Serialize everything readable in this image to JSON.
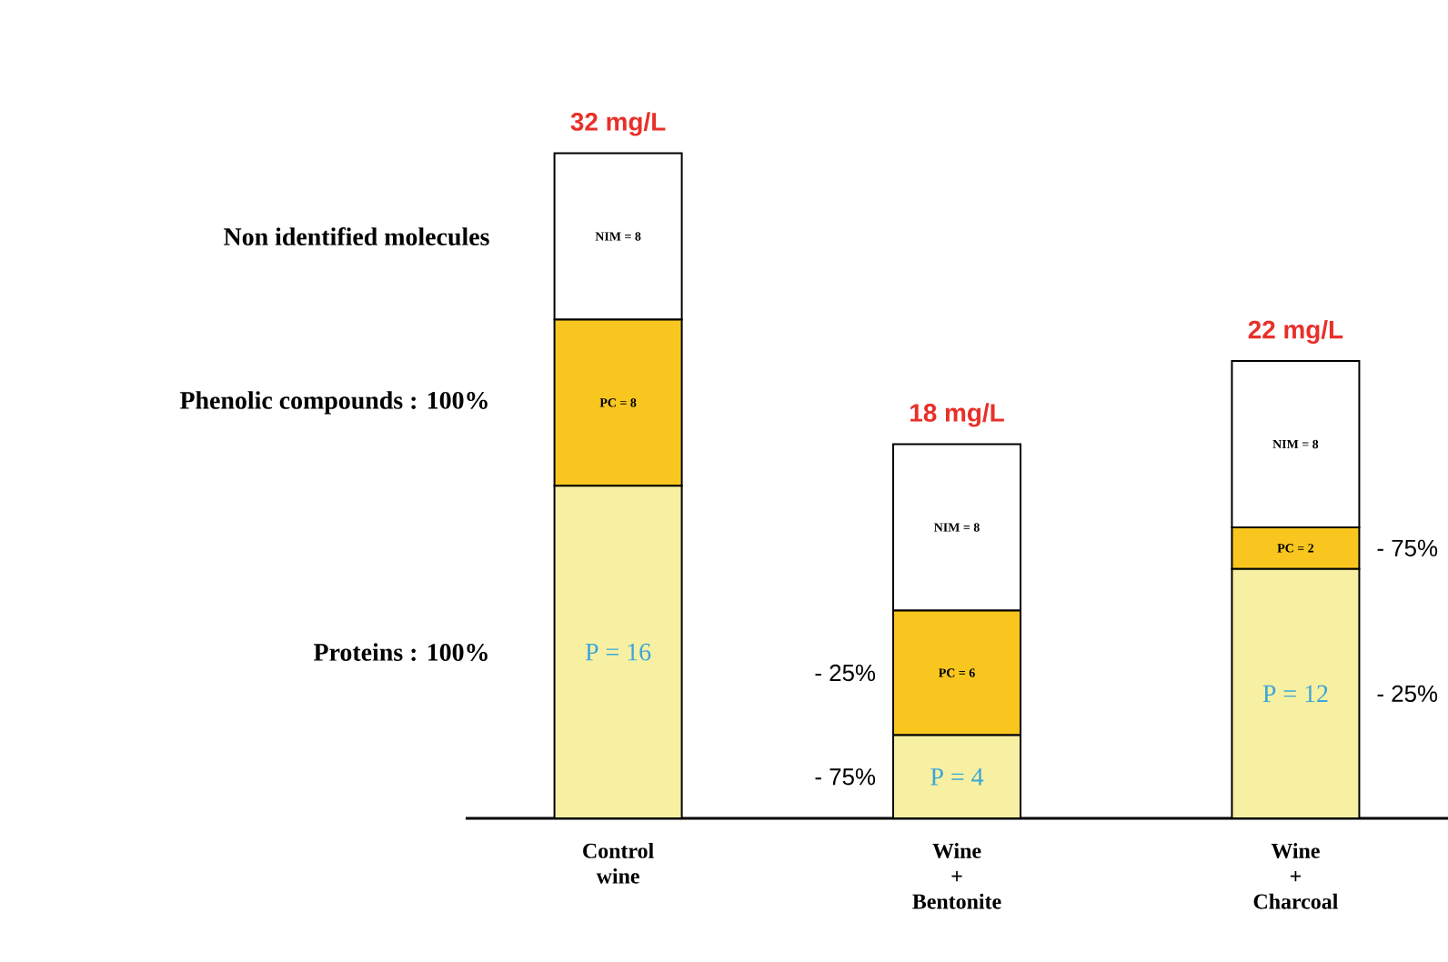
{
  "chart_data": {
    "type": "bar",
    "stacked": true,
    "categories": [
      "Control wine",
      "Wine + Bentonite",
      "Wine + Charcoal"
    ],
    "series": [
      {
        "color": "#f7f0a3",
        "values": [
          16,
          4,
          12
        ],
        "value_labels": [
          "P = 16",
          "P = 4",
          "P = 12"
        ]
      },
      {
        "color": "#f8c61f",
        "values": [
          8,
          6,
          2
        ],
        "value_labels": [
          "PC = 8",
          "PC = 6",
          "PC = 2"
        ]
      },
      {
        "color": "#ffffff",
        "values": [
          8,
          8,
          8
        ],
        "value_labels": [
          "NIM = 8",
          "NIM = 8",
          "NIM = 8"
        ]
      }
    ],
    "totals": [
      "32 mg/L",
      "18 mg/L",
      "22 mg/L"
    ],
    "annotations": [
      "Non identified molecules",
      "Phenolic compounds : 100%",
      "Proteins : 100%",
      "- 25%",
      "- 75%",
      "- 75%",
      "- 25%"
    ]
  }
}
